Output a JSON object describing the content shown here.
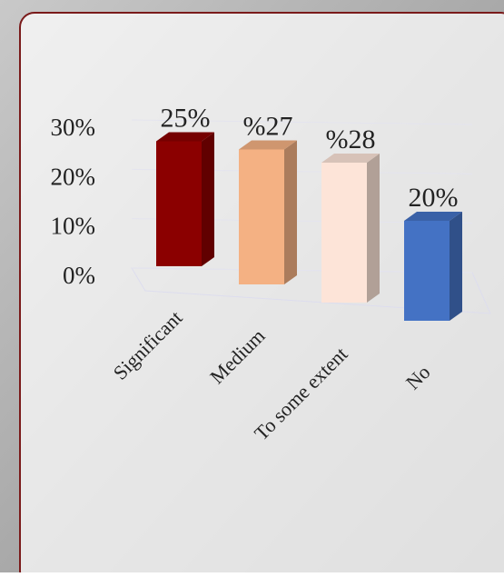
{
  "chart_data": {
    "type": "bar3d",
    "categories": [
      "Significant",
      "Medium",
      "To some extent",
      "No"
    ],
    "values": [
      25,
      27,
      28,
      20
    ],
    "value_labels": [
      "25%",
      "%27",
      "%28",
      "20%"
    ],
    "colors": [
      "#8b0000",
      "#f4b183",
      "#fde4d8",
      "#4472c4"
    ],
    "ylim": [
      0,
      30
    ],
    "yticks": [
      {
        "value": 0,
        "label": "0%"
      },
      {
        "value": 10,
        "label": "10%"
      },
      {
        "value": 20,
        "label": "20%"
      },
      {
        "value": 30,
        "label": "30%"
      }
    ],
    "grid": true
  }
}
